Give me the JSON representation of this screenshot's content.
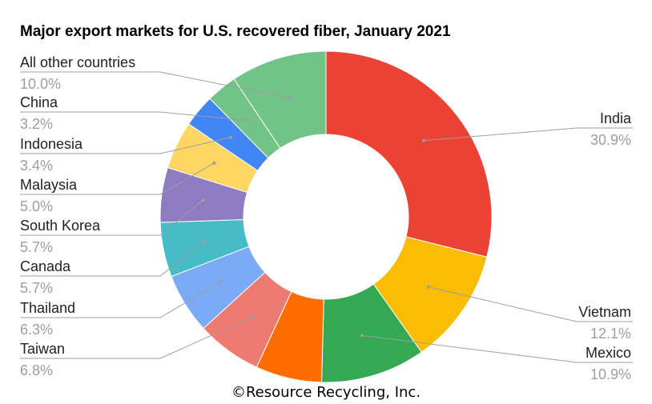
{
  "chart_data": {
    "type": "pie",
    "donut": true,
    "title": "Major export markets for U.S. recovered fiber, January 2021",
    "start_at": "12 o'clock",
    "direction": "clockwise",
    "legend": "none (labels beside the slices)",
    "slices": [
      {
        "label": "India",
        "value": 30.9,
        "value_label": "30.9%",
        "color": "#ea4335"
      },
      {
        "label": "Vietnam",
        "value": 12.1,
        "value_label": "12.1%",
        "color": "#fbbc04"
      },
      {
        "label": "Mexico",
        "value": 10.9,
        "value_label": "10.9%",
        "color": "#34a853"
      },
      {
        "label": "",
        "value": 6.9,
        "value_label": "",
        "color": "#ff6d01"
      },
      {
        "label": "Taiwan",
        "value": 6.8,
        "value_label": "6.8%",
        "color": "#ee7b71"
      },
      {
        "label": "Thailand",
        "value": 6.3,
        "value_label": "6.3%",
        "color": "#7baaf7"
      },
      {
        "label": "Canada",
        "value": 5.7,
        "value_label": "5.7%",
        "color": "#46bdc6"
      },
      {
        "label": "South Korea",
        "value": 5.7,
        "value_label": "5.7%",
        "color": "#8e7cc3"
      },
      {
        "label": "Malaysia",
        "value": 5.0,
        "value_label": "5.0%",
        "color": "#fdd663"
      },
      {
        "label": "Indonesia",
        "value": 3.4,
        "value_label": "3.4%",
        "color": "#4285f4"
      },
      {
        "label": "China",
        "value": 3.2,
        "value_label": "3.2%",
        "color": "#72c387"
      },
      {
        "label": "All other countries",
        "value": 10.0,
        "value_label": "10.0%",
        "color": "#72c387"
      }
    ]
  },
  "credit": "©Resource Recycling, Inc."
}
